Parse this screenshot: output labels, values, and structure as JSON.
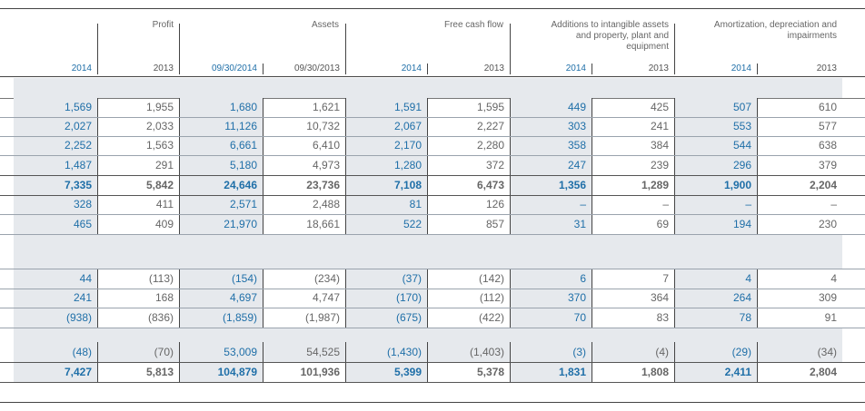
{
  "group_headers": [
    {
      "label": "Profit"
    },
    {
      "label": "Assets"
    },
    {
      "label": "Free cash flow"
    },
    {
      "label": "Additions to intangible assets and property, plant and equipment"
    },
    {
      "label": "Amortization, depreciation and impairments"
    }
  ],
  "years": [
    "2014",
    "2013",
    "09/30/2014",
    "09/30/2013",
    "2014",
    "2013",
    "2014",
    "2013",
    "2014",
    "2013"
  ],
  "rows": [
    {
      "cells": [
        "1,569",
        "1,955",
        "1,680",
        "1,621",
        "1,591",
        "1,595",
        "449",
        "425",
        "507",
        "610"
      ]
    },
    {
      "cells": [
        "2,027",
        "2,033",
        "11,126",
        "10,732",
        "2,067",
        "2,227",
        "303",
        "241",
        "553",
        "577"
      ]
    },
    {
      "cells": [
        "2,252",
        "1,563",
        "6,661",
        "6,410",
        "2,170",
        "2,280",
        "358",
        "384",
        "544",
        "638"
      ]
    },
    {
      "cells": [
        "1,487",
        "291",
        "5,180",
        "4,973",
        "1,280",
        "372",
        "247",
        "239",
        "296",
        "379"
      ]
    },
    {
      "cells": [
        "7,335",
        "5,842",
        "24,646",
        "23,736",
        "7,108",
        "6,473",
        "1,356",
        "1,289",
        "1,900",
        "2,204"
      ]
    },
    {
      "cells": [
        "328",
        "411",
        "2,571",
        "2,488",
        "81",
        "126",
        "–",
        "–",
        "–",
        "–"
      ]
    },
    {
      "cells": [
        "465",
        "409",
        "21,970",
        "18,661",
        "522",
        "857",
        "31",
        "69",
        "194",
        "230"
      ]
    },
    {
      "cells": [
        "44",
        "(113)",
        "(154)",
        "(234)",
        "(37)",
        "(142)",
        "6",
        "7",
        "4",
        "4"
      ]
    },
    {
      "cells": [
        "241",
        "168",
        "4,697",
        "4,747",
        "(170)",
        "(112)",
        "370",
        "364",
        "264",
        "309"
      ]
    },
    {
      "cells": [
        "(938)",
        "(836)",
        "(1,859)",
        "(1,987)",
        "(675)",
        "(422)",
        "70",
        "83",
        "78",
        "91"
      ]
    },
    {
      "cells": [
        "(48)",
        "(70)",
        "53,009",
        "54,525",
        "(1,430)",
        "(1,403)",
        "(3)",
        "(4)",
        "(29)",
        "(34)"
      ]
    },
    {
      "cells": [
        "7,427",
        "5,813",
        "104,879",
        "101,936",
        "5,399",
        "5,378",
        "1,831",
        "1,808",
        "2,411",
        "2,804"
      ]
    }
  ]
}
